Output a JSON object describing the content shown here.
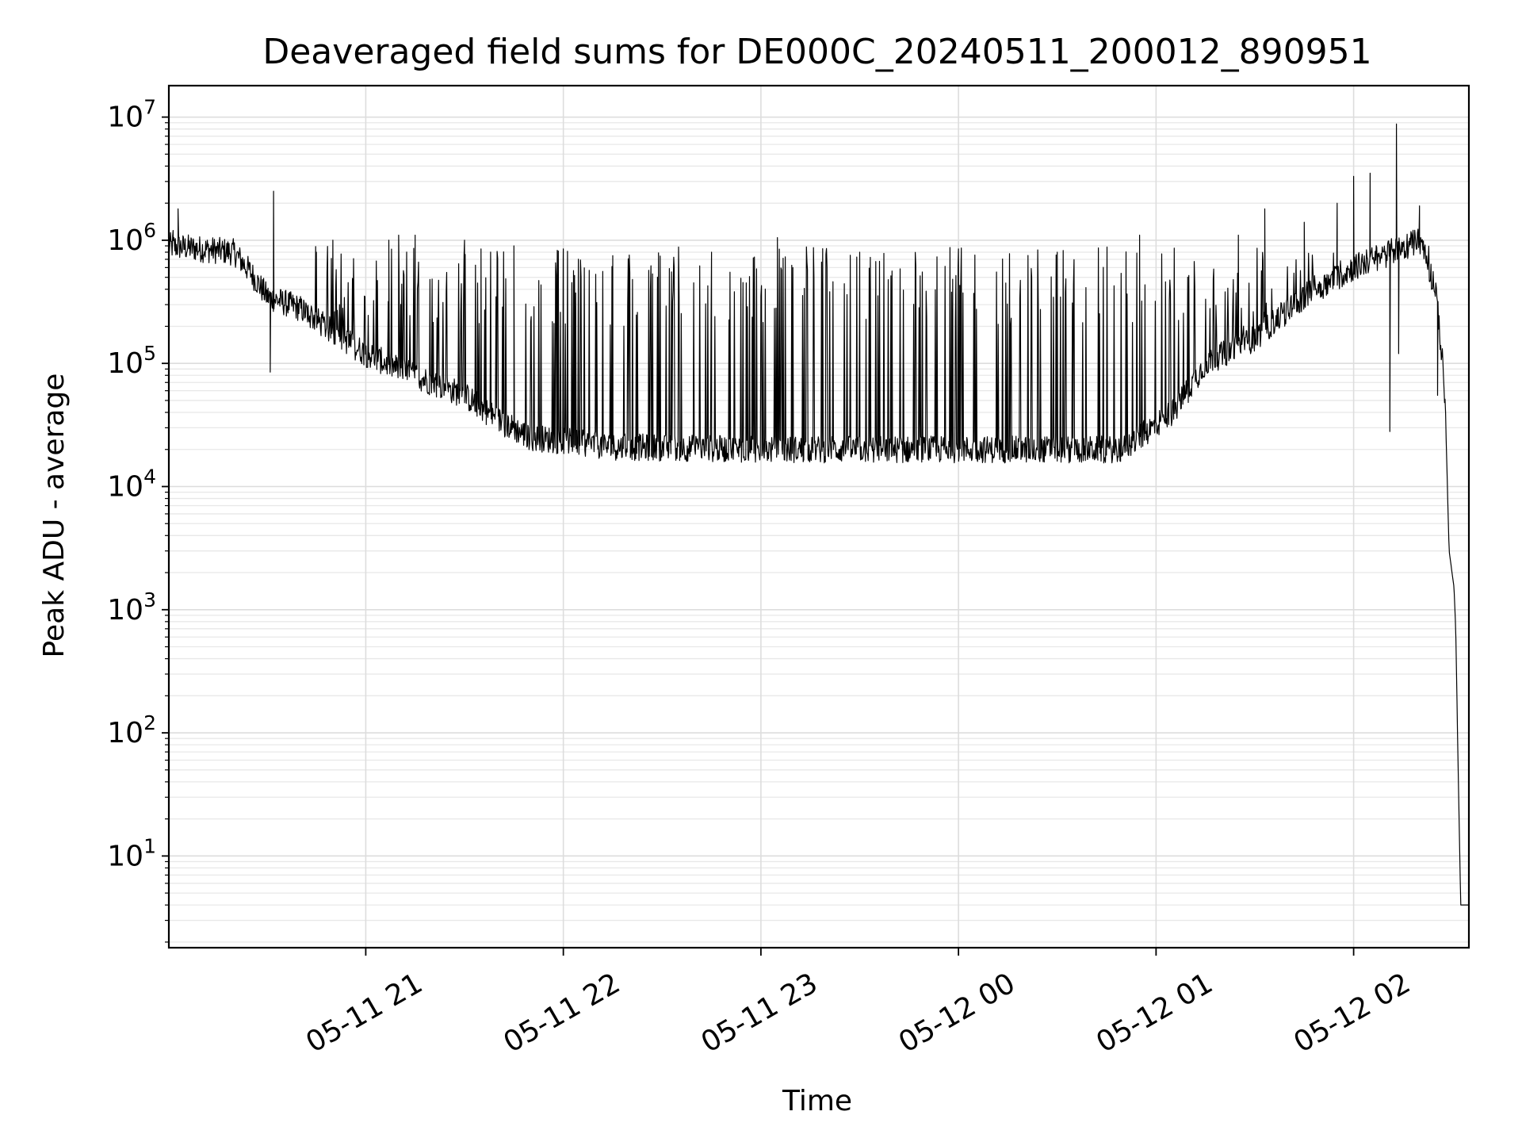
{
  "chart_data": {
    "type": "line",
    "title": "Deaveraged field sums for DE000C_20240511_200012_890951",
    "xlabel": "Time",
    "ylabel": "Peak ADU - average",
    "yscale": "log",
    "ylim": [
      1.8,
      18000000
    ],
    "xlim": [
      "2024-05-11 20:00:12",
      "2024-05-12 02:35:00"
    ],
    "x_ticks": [
      {
        "t": "2024-05-11 21:00:00",
        "label": "05-11 21"
      },
      {
        "t": "2024-05-11 22:00:00",
        "label": "05-11 22"
      },
      {
        "t": "2024-05-11 23:00:00",
        "label": "05-11 23"
      },
      {
        "t": "2024-05-12 00:00:00",
        "label": "05-12 00"
      },
      {
        "t": "2024-05-12 01:00:00",
        "label": "05-12 01"
      },
      {
        "t": "2024-05-12 02:00:00",
        "label": "05-12 02"
      }
    ],
    "y_ticks": [
      {
        "value": 10,
        "base": "10",
        "exp": "1"
      },
      {
        "value": 100,
        "base": "10",
        "exp": "2"
      },
      {
        "value": 1000,
        "base": "10",
        "exp": "3"
      },
      {
        "value": 10000,
        "base": "10",
        "exp": "4"
      },
      {
        "value": 100000,
        "base": "10",
        "exp": "5"
      },
      {
        "value": 1000000,
        "base": "10",
        "exp": "6"
      },
      {
        "value": 10000000,
        "base": "10",
        "exp": "7"
      }
    ],
    "grid": true,
    "line_color": "#000000",
    "series": [
      {
        "baseline": [
          [
            "2024-05-11 20:00:12",
            900000
          ],
          [
            "2024-05-11 20:20:00",
            800000
          ],
          [
            "2024-05-11 20:25:00",
            550000
          ],
          [
            "2024-05-11 20:30:00",
            350000
          ],
          [
            "2024-05-11 20:40:00",
            280000
          ],
          [
            "2024-05-11 20:50:00",
            180000
          ],
          [
            "2024-05-11 21:00:00",
            120000
          ],
          [
            "2024-05-11 21:10:00",
            90000
          ],
          [
            "2024-05-11 21:20:00",
            70000
          ],
          [
            "2024-05-11 21:30:00",
            55000
          ],
          [
            "2024-05-11 21:40:00",
            35000
          ],
          [
            "2024-05-11 21:50:00",
            25000
          ],
          [
            "2024-05-11 22:15:00",
            21000
          ],
          [
            "2024-05-11 23:00:00",
            20000
          ],
          [
            "2024-05-12 00:00:00",
            20000
          ],
          [
            "2024-05-12 00:50:00",
            20000
          ],
          [
            "2024-05-12 01:05:00",
            40000
          ],
          [
            "2024-05-12 01:15:00",
            100000
          ],
          [
            "2024-05-12 01:30:00",
            160000
          ],
          [
            "2024-05-12 01:45:00",
            350000
          ],
          [
            "2024-05-12 02:00:00",
            600000
          ],
          [
            "2024-05-12 02:20:00",
            1000000
          ],
          [
            "2024-05-12 02:25:00",
            400000
          ],
          [
            "2024-05-12 02:27:00",
            100000
          ],
          [
            "2024-05-12 02:28:00",
            30000
          ],
          [
            "2024-05-12 02:29:00",
            3000
          ],
          [
            "2024-05-12 02:30:30",
            1500
          ],
          [
            "2024-05-12 02:31:00",
            700
          ],
          [
            "2024-05-12 02:31:30",
            120
          ],
          [
            "2024-05-12 02:32:30",
            4
          ],
          [
            "2024-05-12 02:35:00",
            4
          ]
        ],
        "peaks": [
          [
            "2024-05-11 20:01:30",
            1200000
          ],
          [
            "2024-05-11 20:03:00",
            1800000
          ],
          [
            "2024-05-11 20:32:00",
            2500000
          ],
          [
            "2024-05-11 20:45:00",
            800000
          ],
          [
            "2024-05-11 20:50:00",
            1000000
          ],
          [
            "2024-05-11 21:07:00",
            1000000
          ],
          [
            "2024-05-11 21:10:00",
            1100000
          ],
          [
            "2024-05-11 21:15:00",
            1100000
          ],
          [
            "2024-05-11 21:30:00",
            1000000
          ],
          [
            "2024-05-11 21:35:00",
            850000
          ],
          [
            "2024-05-11 21:45:00",
            900000
          ],
          [
            "2024-05-11 22:00:00",
            850000
          ],
          [
            "2024-05-11 22:15:00",
            750000
          ],
          [
            "2024-05-11 22:45:00",
            800000
          ],
          [
            "2024-05-11 23:05:00",
            1050000
          ],
          [
            "2024-05-11 23:30:00",
            800000
          ],
          [
            "2024-05-12 00:00:00",
            850000
          ],
          [
            "2024-05-12 00:30:00",
            800000
          ],
          [
            "2024-05-12 00:55:00",
            1100000
          ],
          [
            "2024-05-12 01:25:00",
            1100000
          ],
          [
            "2024-05-12 01:33:00",
            1800000
          ],
          [
            "2024-05-12 01:45:00",
            1400000
          ],
          [
            "2024-05-12 01:55:00",
            2000000
          ],
          [
            "2024-05-12 02:00:00",
            3300000
          ],
          [
            "2024-05-12 02:05:00",
            3500000
          ],
          [
            "2024-05-12 02:13:00",
            8800000
          ],
          [
            "2024-05-12 02:20:00",
            1900000
          ]
        ],
        "dips": [
          [
            "2024-05-11 20:31:00",
            85000
          ],
          [
            "2024-05-12 02:11:00",
            28000
          ],
          [
            "2024-05-12 02:13:40",
            120000
          ],
          [
            "2024-05-12 02:25:30",
            55000
          ]
        ]
      }
    ]
  }
}
